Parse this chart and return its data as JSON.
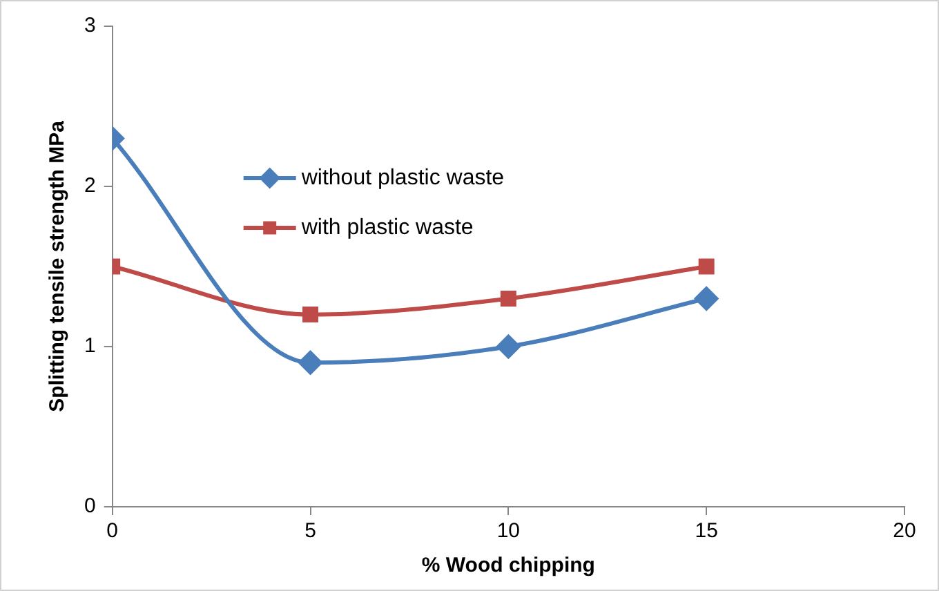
{
  "chart_data": {
    "type": "line",
    "xlabel": "% Wood chipping",
    "ylabel": "Splitting tensile strength MPa",
    "x": [
      0,
      5,
      10,
      15
    ],
    "series": [
      {
        "name": "without plastic waste",
        "color": "#4a7ebb",
        "values": [
          2.3,
          0.9,
          1.0,
          1.3
        ],
        "marker": "diamond"
      },
      {
        "name": "with plastic waste",
        "color": "#be4b48",
        "values": [
          1.5,
          1.2,
          1.3,
          1.5
        ],
        "marker": "square"
      }
    ],
    "xlim": [
      0,
      20
    ],
    "xticks": [
      0,
      5,
      10,
      15,
      20
    ],
    "ylim": [
      0,
      3
    ],
    "yticks": [
      0,
      1,
      2,
      3
    ],
    "grid": false,
    "legend": "top left",
    "line_style": "solid"
  }
}
